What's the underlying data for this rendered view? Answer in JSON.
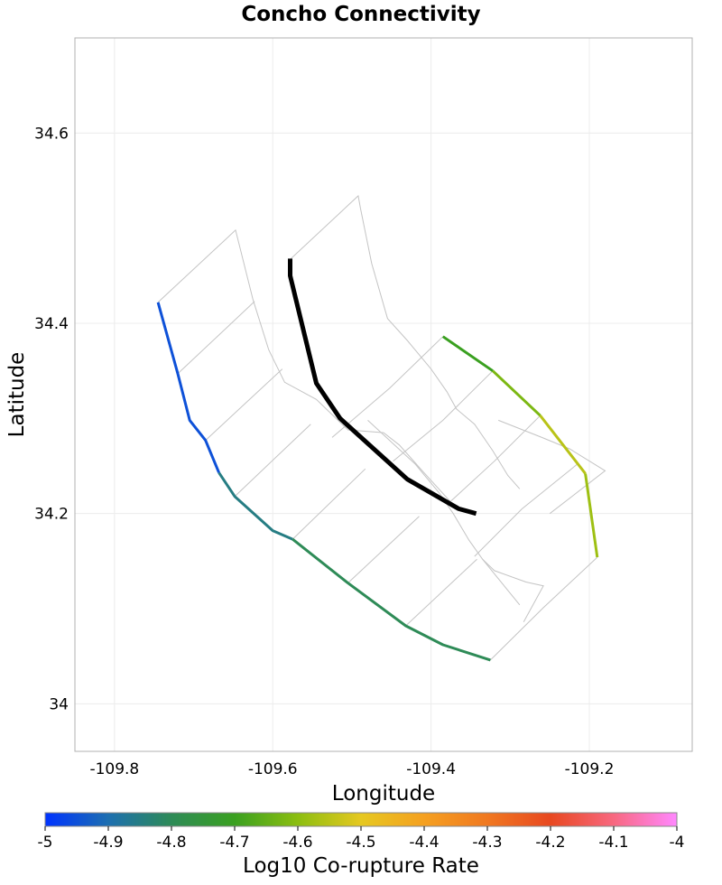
{
  "chart_data": {
    "type": "map",
    "title": "Concho Connectivity",
    "xlabel": "Longitude",
    "ylabel": "Latitude",
    "xlim": [
      -109.85,
      -109.07
    ],
    "ylim": [
      33.95,
      34.7
    ],
    "xticks": [
      -109.8,
      -109.6,
      -109.4,
      -109.2
    ],
    "yticks": [
      34.0,
      34.2,
      34.4,
      34.6
    ],
    "grid": true,
    "colorbar": {
      "label": "Log10 Co-rupture Rate",
      "range": [
        -5,
        -4
      ],
      "ticks": [
        "-5",
        "-4.9",
        "-4.8",
        "-4.7",
        "-4.6",
        "-4.5",
        "-4.4",
        "-4.3",
        "-4.2",
        "-4.1",
        "-4"
      ],
      "colors": [
        "#0033ff",
        "#1d6fb0",
        "#2e8b57",
        "#3aa020",
        "#8cbe10",
        "#e6c820",
        "#f5a020",
        "#f07820",
        "#e84820",
        "#f86880",
        "#ff88ff"
      ]
    },
    "fault_sections": [
      [
        [
          -109.745,
          34.422
        ],
        [
          -109.647,
          34.498
        ],
        [
          -109.625,
          34.425
        ],
        [
          -109.605,
          34.372
        ],
        [
          -109.585,
          34.338
        ],
        [
          -109.545,
          34.32
        ],
        [
          -109.505,
          34.288
        ],
        [
          -109.46,
          34.285
        ],
        [
          -109.44,
          34.272
        ],
        [
          -109.41,
          34.244
        ],
        [
          -109.375,
          34.212
        ]
      ],
      [
        [
          -109.577,
          34.468
        ],
        [
          -109.492,
          34.534
        ],
        [
          -109.489,
          34.52
        ],
        [
          -109.475,
          34.463
        ],
        [
          -109.455,
          34.405
        ],
        [
          -109.43,
          34.382
        ],
        [
          -109.4,
          34.352
        ],
        [
          -109.38,
          34.328
        ],
        [
          -109.368,
          34.31
        ],
        [
          -109.345,
          34.294
        ],
        [
          -109.322,
          34.266
        ],
        [
          -109.303,
          34.24
        ],
        [
          -109.288,
          34.226
        ]
      ],
      [
        [
          -109.72,
          34.347
        ],
        [
          -109.623,
          34.423
        ]
      ],
      [
        [
          -109.685,
          34.277
        ],
        [
          -109.588,
          34.352
        ]
      ],
      [
        [
          -109.648,
          34.218
        ],
        [
          -109.552,
          34.294
        ]
      ],
      [
        [
          -109.575,
          34.173
        ],
        [
          -109.483,
          34.247
        ]
      ],
      [
        [
          -109.505,
          34.127
        ],
        [
          -109.415,
          34.197
        ]
      ],
      [
        [
          -109.432,
          34.082
        ],
        [
          -109.342,
          34.152
        ]
      ],
      [
        [
          -109.385,
          34.386
        ],
        [
          -109.452,
          34.332
        ],
        [
          -109.525,
          34.28
        ]
      ],
      [
        [
          -109.322,
          34.35
        ],
        [
          -109.385,
          34.298
        ],
        [
          -109.448,
          34.255
        ]
      ],
      [
        [
          -109.262,
          34.303
        ],
        [
          -109.32,
          34.255
        ],
        [
          -109.375,
          34.213
        ]
      ],
      [
        [
          -109.325,
          34.046
        ],
        [
          -109.258,
          34.101
        ],
        [
          -109.19,
          34.154
        ]
      ],
      [
        [
          -109.315,
          34.298
        ],
        [
          -109.26,
          34.28
        ],
        [
          -109.225,
          34.268
        ],
        [
          -109.18,
          34.245
        ],
        [
          -109.25,
          34.2
        ]
      ],
      [
        [
          -109.345,
          34.155
        ],
        [
          -109.285,
          34.205
        ],
        [
          -109.215,
          34.252
        ]
      ],
      [
        [
          -109.48,
          34.298
        ],
        [
          -109.42,
          34.252
        ],
        [
          -109.39,
          34.222
        ],
        [
          -109.372,
          34.2
        ],
        [
          -109.352,
          34.172
        ],
        [
          -109.335,
          34.152
        ],
        [
          -109.32,
          34.14
        ],
        [
          -109.28,
          34.128
        ],
        [
          -109.258,
          34.124
        ],
        [
          -109.283,
          34.086
        ]
      ],
      [
        [
          -109.335,
          34.152
        ],
        [
          -109.288,
          34.104
        ]
      ]
    ],
    "highlighted_section": [
      [
        -109.578,
        34.468
      ],
      [
        -109.578,
        34.45
      ],
      [
        -109.545,
        34.337
      ],
      [
        -109.515,
        34.3
      ],
      [
        -109.43,
        34.236
      ],
      [
        -109.365,
        34.205
      ],
      [
        -109.343,
        34.2
      ]
    ],
    "colored_trace": [
      {
        "points": [
          [
            -109.745,
            34.422
          ],
          [
            -109.72,
            34.347
          ],
          [
            -109.705,
            34.298
          ],
          [
            -109.685,
            34.277
          ],
          [
            -109.668,
            34.243
          ]
        ],
        "value": -4.95
      },
      {
        "points": [
          [
            -109.668,
            34.243
          ],
          [
            -109.648,
            34.218
          ],
          [
            -109.6,
            34.182
          ],
          [
            -109.575,
            34.173
          ]
        ],
        "value": -4.85
      },
      {
        "points": [
          [
            -109.575,
            34.173
          ],
          [
            -109.505,
            34.127
          ],
          [
            -109.432,
            34.082
          ],
          [
            -109.385,
            34.062
          ],
          [
            -109.325,
            34.046
          ]
        ],
        "value": -4.8
      },
      {
        "points": [
          [
            -109.385,
            34.386
          ],
          [
            -109.322,
            34.35
          ]
        ],
        "value": -4.7
      },
      {
        "points": [
          [
            -109.322,
            34.35
          ],
          [
            -109.262,
            34.303
          ]
        ],
        "value": -4.62
      },
      {
        "points": [
          [
            -109.262,
            34.303
          ],
          [
            -109.205,
            34.242
          ]
        ],
        "value": -4.55
      },
      {
        "points": [
          [
            -109.205,
            34.242
          ],
          [
            -109.19,
            34.154
          ]
        ],
        "value": -4.58
      }
    ]
  }
}
